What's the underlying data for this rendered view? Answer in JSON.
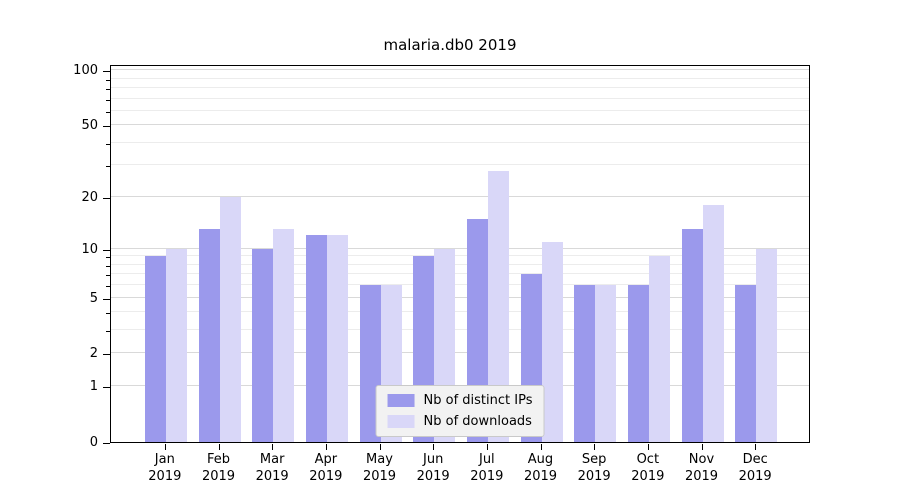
{
  "title": "malaria.db0 2019",
  "chart_data": {
    "type": "bar",
    "title": "malaria.db0 2019",
    "x_categories": [
      "Jan",
      "Feb",
      "Mar",
      "Apr",
      "May",
      "Jun",
      "Jul",
      "Aug",
      "Sep",
      "Oct",
      "Nov",
      "Dec"
    ],
    "x_year": "2019",
    "series": [
      {
        "name": "Nb of distinct IPs",
        "color": "#9b99ec",
        "values": [
          9,
          13,
          10,
          12,
          6,
          9,
          15,
          7,
          6,
          6,
          13,
          6
        ]
      },
      {
        "name": "Nb of downloads",
        "color": "#d9d7f8",
        "values": [
          10,
          20,
          13,
          12,
          6,
          10,
          28,
          11,
          6,
          9,
          18,
          10
        ]
      }
    ],
    "y_scale": "log1p",
    "y_major_ticks": [
      0,
      1,
      2,
      5,
      10,
      20,
      50,
      100
    ],
    "y_minor_ticks": [
      3,
      4,
      6,
      7,
      8,
      9,
      30,
      40,
      60,
      70,
      80,
      90
    ],
    "y_axis_max": 108,
    "grid": true,
    "legend_position": "bottom-center"
  },
  "colors": {
    "bar_distinct_ips": "#9b99ec",
    "bar_downloads": "#d9d7f8",
    "grid_major": "#d9d9d9",
    "grid_minor": "#ececec",
    "axis": "#000000",
    "legend_background": "#f2f2f2",
    "legend_border": "#c9c9c9"
  }
}
